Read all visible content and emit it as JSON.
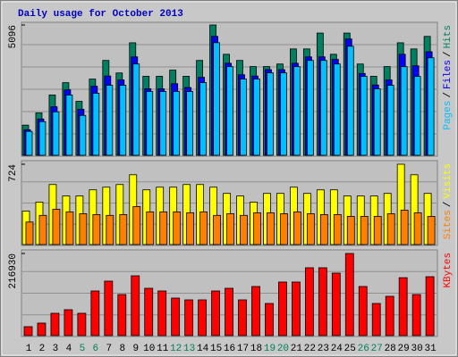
{
  "chart_data": [
    {
      "type": "bar",
      "title": "Daily usage for October 2013",
      "ylim": [
        0,
        5096
      ],
      "yticks": [
        5096
      ],
      "legend_separator": "/",
      "series": [
        {
          "name": "Hits",
          "color": "#008060",
          "values": [
            1180,
            1660,
            2360,
            2840,
            2110,
            2980,
            3710,
            3220,
            4400,
            3090,
            3090,
            3330,
            3090,
            3710,
            5096,
            3950,
            3710,
            3470,
            3470,
            3570,
            4160,
            4160,
            4780,
            3950,
            4780,
            3570,
            3090,
            3470,
            4400,
            4160,
            4650
          ]
        },
        {
          "name": "Files",
          "color": "#0000ff",
          "values": [
            1000,
            1420,
            1900,
            2560,
            1800,
            2700,
            3100,
            2950,
            3850,
            2600,
            2600,
            2800,
            2650,
            3050,
            4650,
            3600,
            3150,
            3100,
            3350,
            3350,
            3600,
            3850,
            3850,
            3750,
            4550,
            3200,
            2750,
            2950,
            3950,
            3500,
            4050
          ]
        },
        {
          "name": "Pages",
          "color": "#00c0ff",
          "values": [
            936,
            1317,
            1699,
            2357,
            1560,
            2427,
            2739,
            2739,
            3571,
            2496,
            2496,
            2496,
            2496,
            2843,
            4403,
            3467,
            2982,
            2982,
            3224,
            3224,
            3467,
            3709,
            3709,
            3571,
            4264,
            3086,
            2600,
            2739,
            3467,
            3086,
            3813
          ]
        }
      ]
    },
    {
      "type": "bar",
      "ylim": [
        0,
        724
      ],
      "yticks": [
        724
      ],
      "legend_separator": "/",
      "series": [
        {
          "name": "Visits",
          "color": "#ffff00",
          "values": [
            302,
            382,
            541,
            438,
            438,
            493,
            517,
            541,
            629,
            493,
            517,
            517,
            541,
            541,
            517,
            461,
            438,
            382,
            461,
            461,
            517,
            461,
            493,
            493,
            438,
            438,
            438,
            461,
            724,
            629,
            461
          ]
        },
        {
          "name": "Sites",
          "color": "#ff8000",
          "values": [
            203,
            263,
            318,
            294,
            278,
            270,
            263,
            270,
            342,
            294,
            294,
            294,
            286,
            294,
            263,
            278,
            263,
            286,
            286,
            278,
            294,
            278,
            270,
            270,
            254,
            254,
            254,
            278,
            310,
            286,
            254
          ]
        }
      ]
    },
    {
      "type": "bar",
      "ylim": [
        0,
        216930
      ],
      "yticks": [
        216930
      ],
      "categories": [
        "1",
        "2",
        "3",
        "4",
        "5",
        "6",
        "7",
        "8",
        "9",
        "10",
        "11",
        "12",
        "13",
        "14",
        "15",
        "16",
        "17",
        "18",
        "19",
        "20",
        "21",
        "22",
        "23",
        "24",
        "25",
        "26",
        "27",
        "28",
        "29",
        "30",
        "31"
      ],
      "category_colors": [
        "#000000",
        "#000000",
        "#000000",
        "#000000",
        "#00805c",
        "#00805c",
        "#000000",
        "#000000",
        "#000000",
        "#000000",
        "#000000",
        "#00805c",
        "#00805c",
        "#000000",
        "#000000",
        "#000000",
        "#000000",
        "#000000",
        "#00805c",
        "#00805c",
        "#000000",
        "#000000",
        "#000000",
        "#000000",
        "#000000",
        "#00805c",
        "#00805c",
        "#000000",
        "#000000",
        "#000000",
        "#000000"
      ],
      "series": [
        {
          "name": "KBytes",
          "color": "#ff0000",
          "values": [
            23580,
            33010,
            58950,
            68380,
            58950,
            117900,
            143840,
            108470,
            157990,
            124970,
            117900,
            99040,
            94320,
            94320,
            117900,
            124970,
            94320,
            129690,
            84890,
            141480,
            141480,
            179210,
            179210,
            165060,
            216930,
            129690,
            84890,
            103750,
            152990,
            108470,
            155580
          ]
        }
      ]
    }
  ]
}
